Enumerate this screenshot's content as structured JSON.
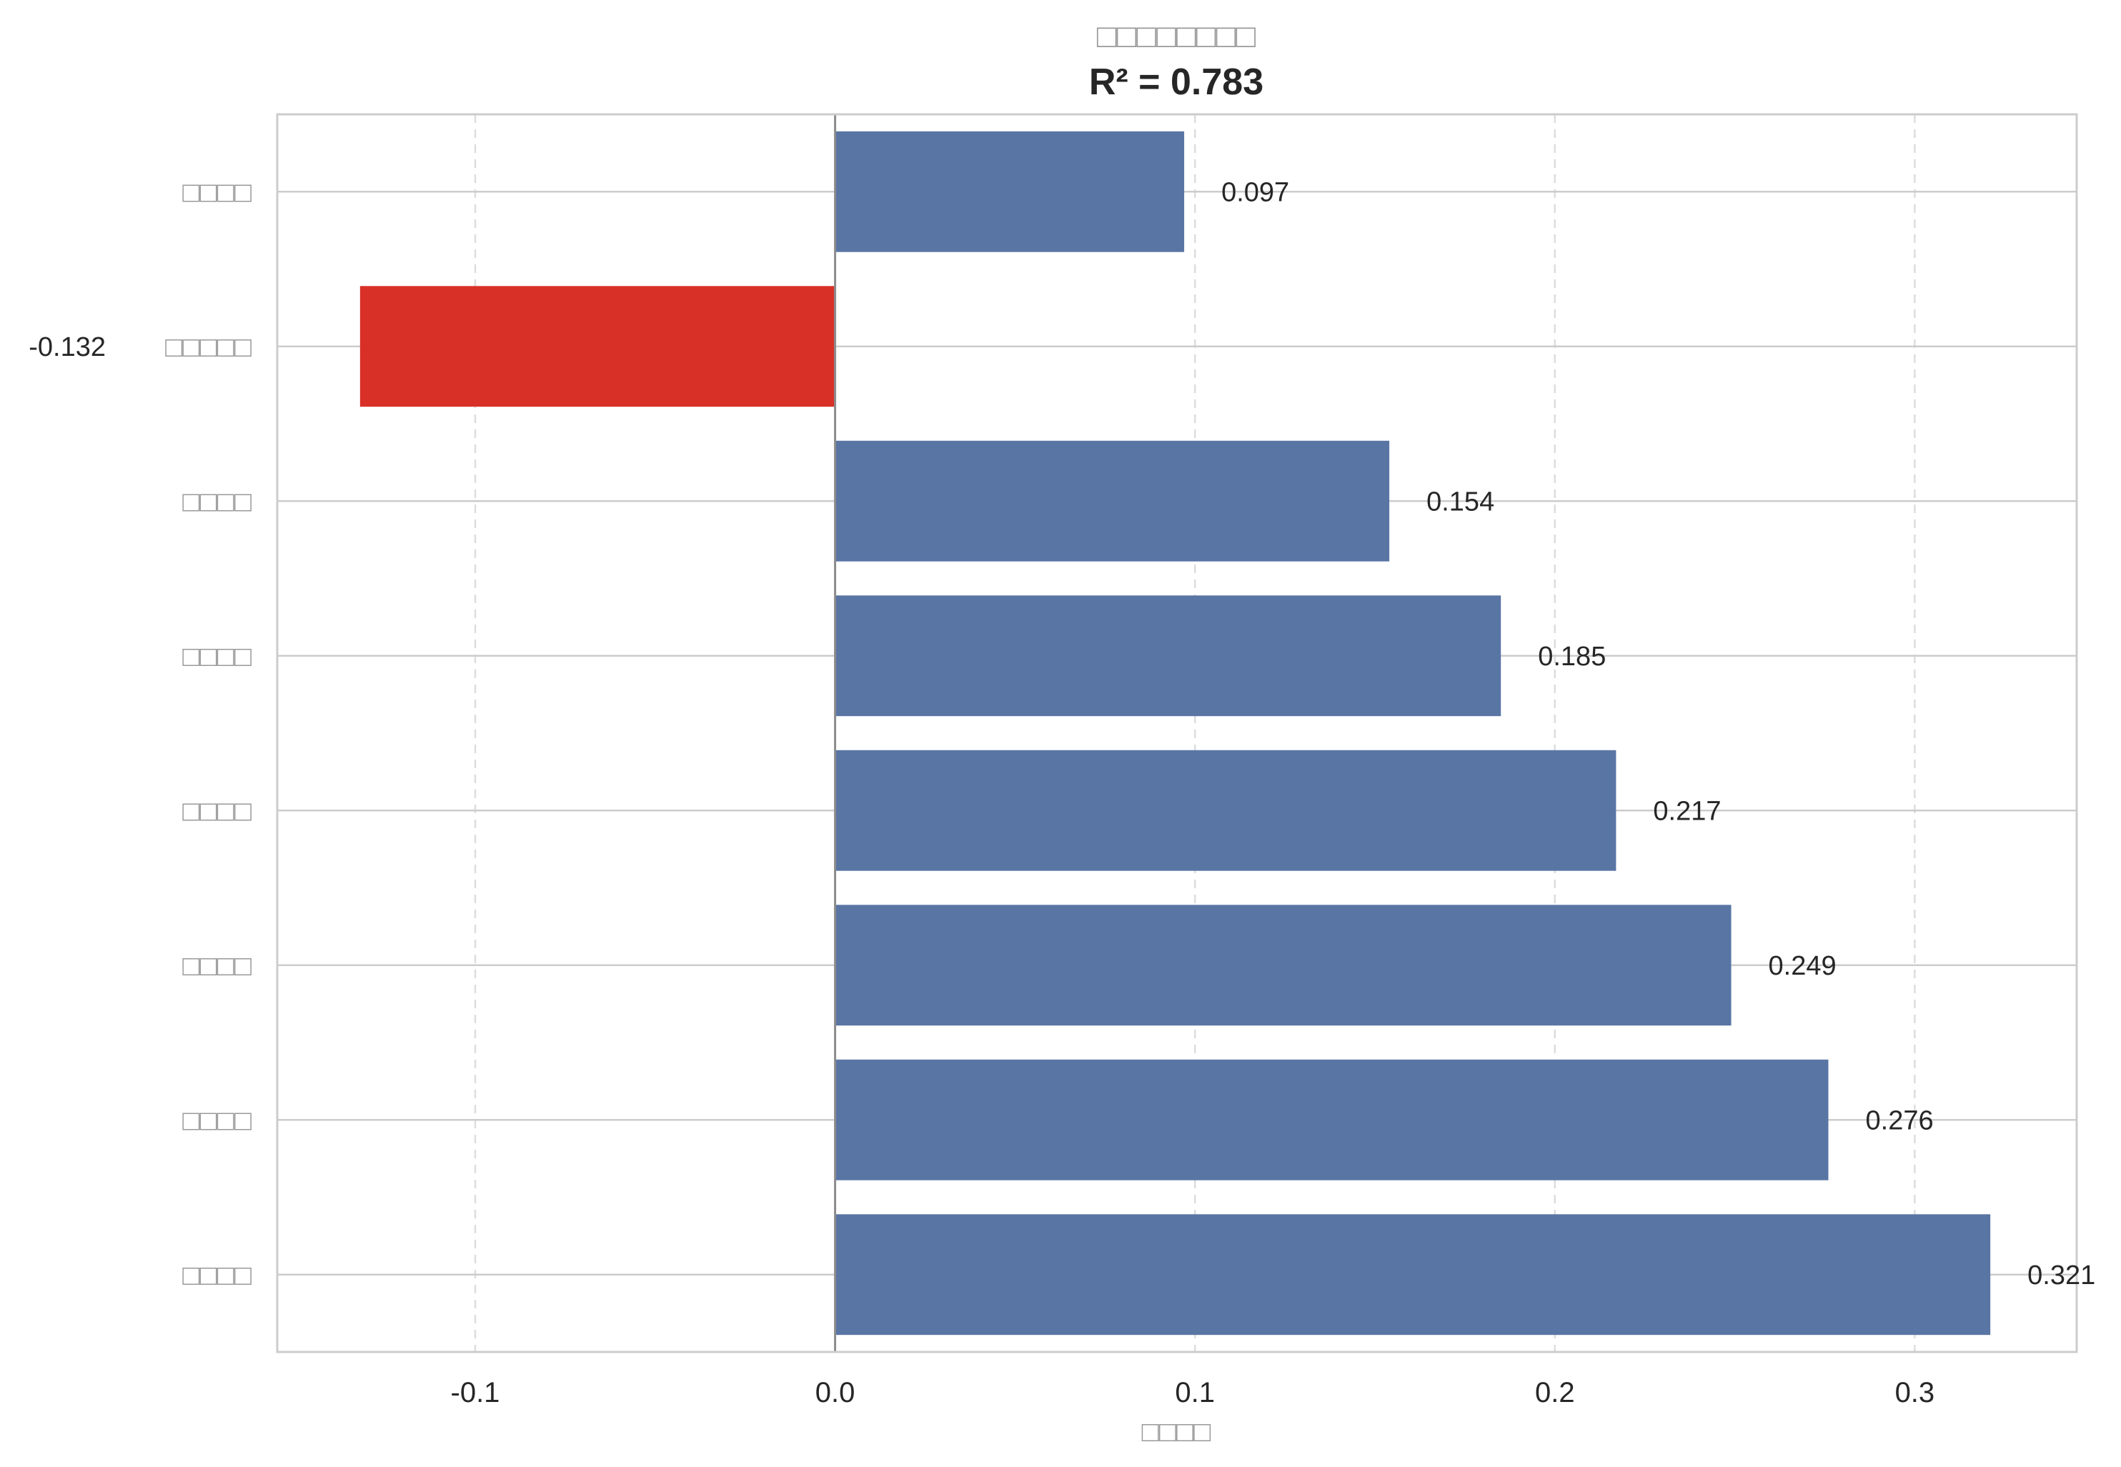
{
  "chart_data": {
    "type": "bar",
    "orientation": "horizontal",
    "title": "□□□□□□□□",
    "subtitle": "R² = 0.783",
    "xlabel": "□□□□",
    "ylabel": "",
    "xlim": [
      -0.155,
      0.345
    ],
    "xticks": [
      -0.1,
      0.0,
      0.1,
      0.2,
      0.3
    ],
    "xtick_labels": [
      "-0.1",
      "0.0",
      "0.1",
      "0.2",
      "0.3"
    ],
    "categories": [
      "□□□□",
      "□□□□□",
      "□□□□",
      "□□□□",
      "□□□□",
      "□□□□",
      "□□□□",
      "□□□□"
    ],
    "values": [
      0.097,
      -0.132,
      0.154,
      0.185,
      0.217,
      0.249,
      0.276,
      0.321
    ],
    "value_labels": [
      "0.097",
      "-0.132",
      "0.154",
      "0.185",
      "0.217",
      "0.249",
      "0.276",
      "0.321"
    ],
    "colors": {
      "positive": "#5975a4",
      "negative": "#d83027"
    },
    "grid": true,
    "legend": "none"
  }
}
